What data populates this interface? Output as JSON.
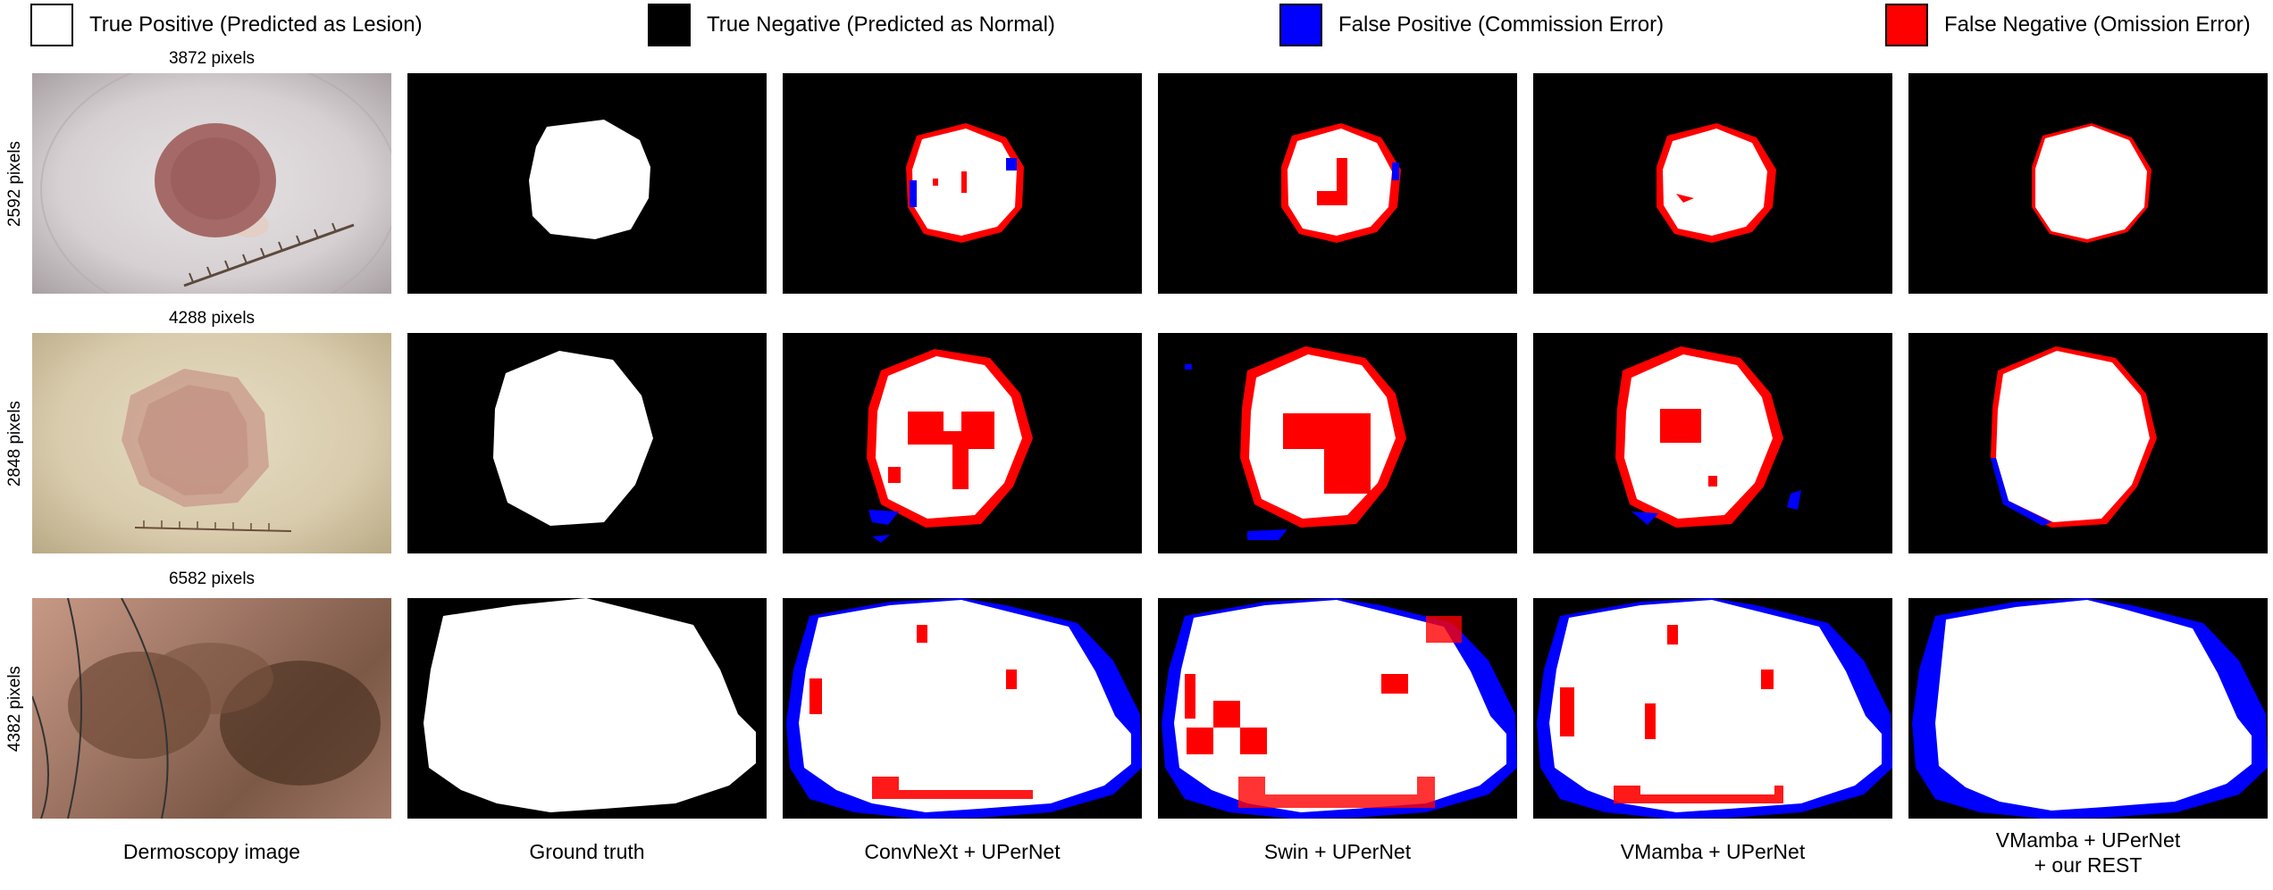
{
  "legend": {
    "true_positive": "True Positive (Predicted as Lesion)",
    "true_negative": "True Negative (Predicted as Normal)",
    "false_positive": "False Positive (Commission Error)",
    "false_negative": "False Negative (Omission Error)"
  },
  "colors": {
    "true_positive": "#ffffff",
    "true_negative": "#000000",
    "false_positive": "#0000ff",
    "false_negative": "#ff0000"
  },
  "rows": [
    {
      "width_label": "3872 pixels",
      "height_label": "2592 pixels"
    },
    {
      "width_label": "4288 pixels",
      "height_label": "2848 pixels"
    },
    {
      "width_label": "6582 pixels",
      "height_label": "4382 pixels"
    }
  ],
  "columns": [
    {
      "caption": "Dermoscopy image",
      "caption_line2": ""
    },
    {
      "caption": "Ground truth",
      "caption_line2": ""
    },
    {
      "caption": "ConvNeXt + UPerNet",
      "caption_line2": ""
    },
    {
      "caption": "Swin + UPerNet",
      "caption_line2": ""
    },
    {
      "caption": "VMamba + UPerNet",
      "caption_line2": ""
    },
    {
      "caption": "VMamba + UPerNet",
      "caption_line2": "+ our REST"
    }
  ]
}
